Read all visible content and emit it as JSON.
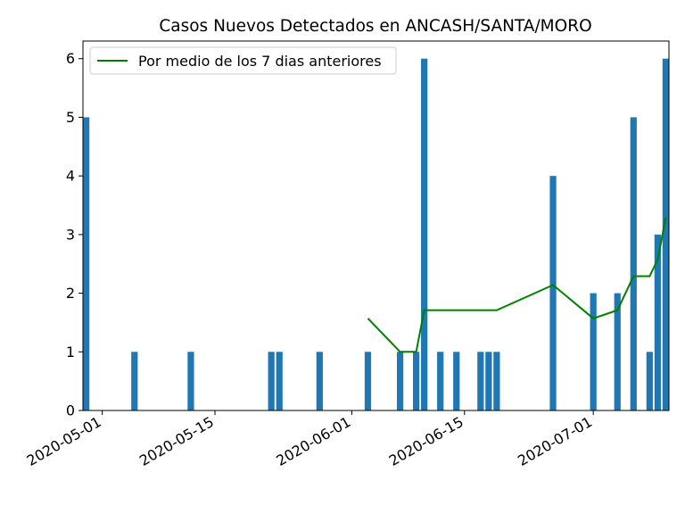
{
  "chart_data": {
    "type": "bar",
    "title": "Casos Nuevos Detectados en ANCASH/SANTA/MORO",
    "xlabel": "",
    "ylabel": "",
    "x_range": [
      "2020-04-29",
      "2020-07-10"
    ],
    "ylim": [
      0,
      6.3
    ],
    "y_ticks": [
      0,
      1,
      2,
      3,
      4,
      5,
      6
    ],
    "x_ticks": [
      "2020-05-01",
      "2020-05-15",
      "2020-06-01",
      "2020-06-15",
      "2020-07-01"
    ],
    "grid": false,
    "legend_position": "top-left",
    "bar_color": "#1f77b4",
    "line_color": "#008000",
    "bars": [
      {
        "date": "2020-04-29",
        "value": 5
      },
      {
        "date": "2020-05-05",
        "value": 1
      },
      {
        "date": "2020-05-12",
        "value": 1
      },
      {
        "date": "2020-05-22",
        "value": 1
      },
      {
        "date": "2020-05-23",
        "value": 1
      },
      {
        "date": "2020-05-28",
        "value": 1
      },
      {
        "date": "2020-06-03",
        "value": 1
      },
      {
        "date": "2020-06-07",
        "value": 1
      },
      {
        "date": "2020-06-09",
        "value": 1
      },
      {
        "date": "2020-06-10",
        "value": 6
      },
      {
        "date": "2020-06-12",
        "value": 1
      },
      {
        "date": "2020-06-14",
        "value": 1
      },
      {
        "date": "2020-06-17",
        "value": 1
      },
      {
        "date": "2020-06-18",
        "value": 1
      },
      {
        "date": "2020-06-19",
        "value": 1
      },
      {
        "date": "2020-06-26",
        "value": 4
      },
      {
        "date": "2020-07-01",
        "value": 2
      },
      {
        "date": "2020-07-04",
        "value": 2
      },
      {
        "date": "2020-07-06",
        "value": 5
      },
      {
        "date": "2020-07-08",
        "value": 1
      },
      {
        "date": "2020-07-09",
        "value": 3
      },
      {
        "date": "2020-07-10",
        "value": 6
      }
    ],
    "series": [
      {
        "name": "Por medio de los 7 dias anteriores",
        "points": [
          {
            "date": "2020-06-03",
            "value": 1.57
          },
          {
            "date": "2020-06-07",
            "value": 1.0
          },
          {
            "date": "2020-06-09",
            "value": 1.0
          },
          {
            "date": "2020-06-10",
            "value": 1.71
          },
          {
            "date": "2020-06-12",
            "value": 1.71
          },
          {
            "date": "2020-06-14",
            "value": 1.71
          },
          {
            "date": "2020-06-17",
            "value": 1.71
          },
          {
            "date": "2020-06-18",
            "value": 1.71
          },
          {
            "date": "2020-06-19",
            "value": 1.71
          },
          {
            "date": "2020-06-26",
            "value": 2.14
          },
          {
            "date": "2020-07-01",
            "value": 1.57
          },
          {
            "date": "2020-07-04",
            "value": 1.71
          },
          {
            "date": "2020-07-06",
            "value": 2.29
          },
          {
            "date": "2020-07-08",
            "value": 2.29
          },
          {
            "date": "2020-07-09",
            "value": 2.57
          },
          {
            "date": "2020-07-10",
            "value": 3.29
          }
        ]
      }
    ]
  }
}
